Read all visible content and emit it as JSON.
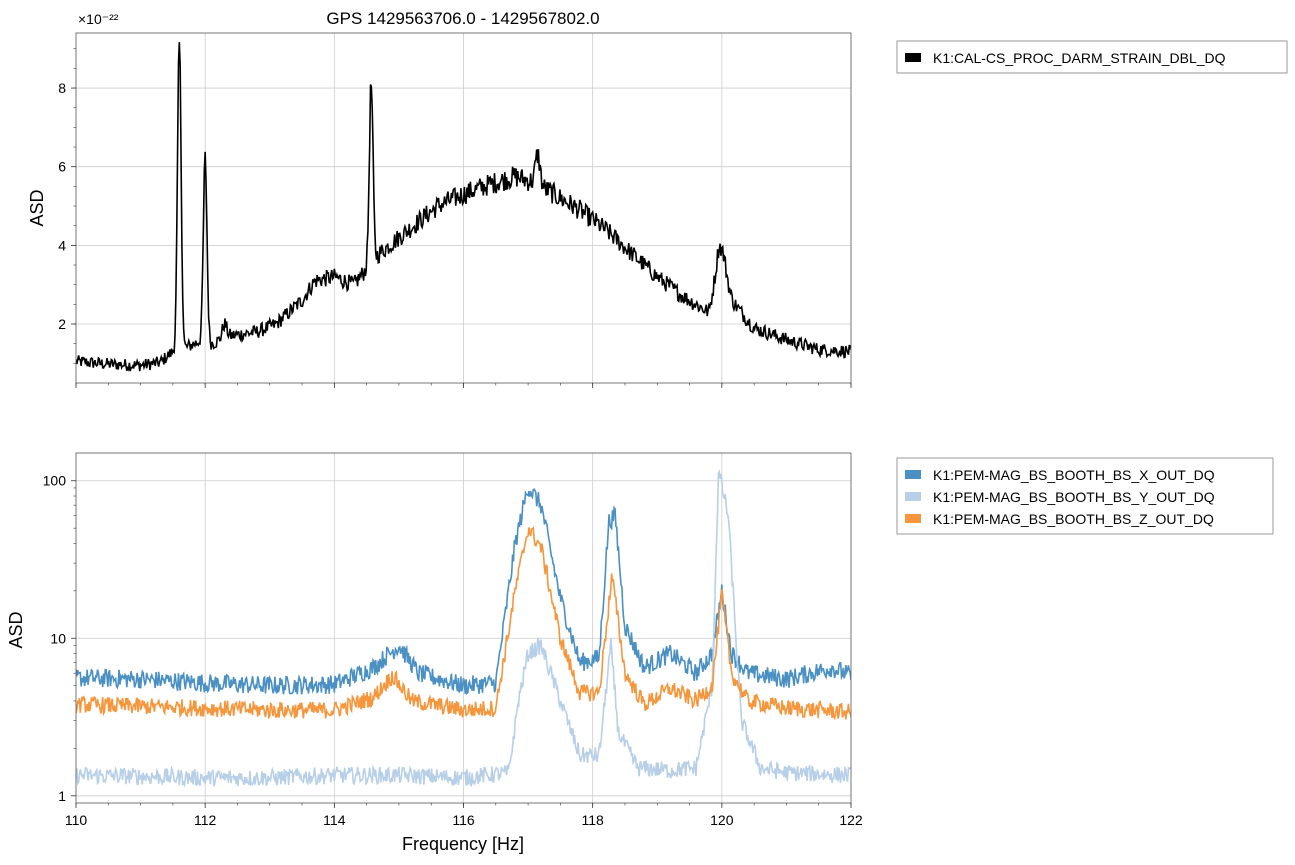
{
  "figure": {
    "title": "GPS 1429563706.0 - 1429567802.0"
  },
  "chart_data": [
    {
      "type": "line",
      "title": "GPS 1429563706.0 - 1429567802.0",
      "xlabel": "",
      "ylabel": "ASD",
      "xlim": [
        110,
        122
      ],
      "ylim": [
        0.5,
        9.4
      ],
      "y_offset_label": "×10⁻²²",
      "y_scale": "linear",
      "grid": true,
      "legend_position": "outside-right",
      "xticks": [
        110,
        112,
        114,
        116,
        118,
        120,
        122
      ],
      "yticks": [
        2,
        4,
        6,
        8
      ],
      "ytick_labels": [
        "2",
        "4",
        "6",
        "8"
      ],
      "series": [
        {
          "name": "K1:CAL-CS_PROC_DARM_STRAIN_DBL_DQ",
          "color": "#000000",
          "baseline": [
            [
              110,
              1.05
            ],
            [
              110.5,
              0.98
            ],
            [
              111,
              0.95
            ],
            [
              111.3,
              1.02
            ],
            [
              111.5,
              1.3
            ],
            [
              111.7,
              1.4
            ],
            [
              111.9,
              1.55
            ],
            [
              112.1,
              1.5
            ],
            [
              112.4,
              1.7
            ],
            [
              112.8,
              1.8
            ],
            [
              113.1,
              2.0
            ],
            [
              113.5,
              2.6
            ],
            [
              113.7,
              3.1
            ],
            [
              114.0,
              3.2
            ],
            [
              114.3,
              3.0
            ],
            [
              114.55,
              3.5
            ],
            [
              114.7,
              3.8
            ],
            [
              115.0,
              4.2
            ],
            [
              115.3,
              4.6
            ],
            [
              115.6,
              5.0
            ],
            [
              116.0,
              5.3
            ],
            [
              116.4,
              5.55
            ],
            [
              116.8,
              5.75
            ],
            [
              117.1,
              5.6
            ],
            [
              117.4,
              5.3
            ],
            [
              117.8,
              4.9
            ],
            [
              118.2,
              4.4
            ],
            [
              118.6,
              3.8
            ],
            [
              119.0,
              3.2
            ],
            [
              119.4,
              2.7
            ],
            [
              119.8,
              2.3
            ],
            [
              119.95,
              3.4
            ],
            [
              120.15,
              2.6
            ],
            [
              120.5,
              1.9
            ],
            [
              121.0,
              1.6
            ],
            [
              121.5,
              1.35
            ],
            [
              122.0,
              1.3
            ]
          ],
          "peaks": [
            {
              "x": 111.6,
              "y": 9.1,
              "width": 0.04
            },
            {
              "x": 112.0,
              "y": 6.2,
              "width": 0.04
            },
            {
              "x": 112.3,
              "y": 2.0,
              "width": 0.05
            },
            {
              "x": 114.57,
              "y": 8.1,
              "width": 0.04
            },
            {
              "x": 117.15,
              "y": 6.3,
              "width": 0.05
            },
            {
              "x": 120.0,
              "y": 3.9,
              "width": 0.1
            }
          ],
          "noise": 0.22
        }
      ]
    },
    {
      "type": "line",
      "title": "",
      "xlabel": "Frequency [Hz]",
      "ylabel": "ASD",
      "xlim": [
        110,
        122
      ],
      "ylim": [
        0.9,
        150
      ],
      "y_scale": "log",
      "grid": true,
      "legend_position": "outside-right",
      "xticks": [
        110,
        112,
        114,
        116,
        118,
        120,
        122
      ],
      "xtick_labels": [
        "110",
        "112",
        "114",
        "116",
        "118",
        "120",
        "122"
      ],
      "yticks": [
        1,
        10,
        100
      ],
      "ytick_labels": [
        "1",
        "10",
        "100"
      ],
      "series": [
        {
          "name": "K1:PEM-MAG_BS_BOOTH_BS_X_OUT_DQ",
          "color": "#4a90c2",
          "baseline": [
            [
              110,
              5.6
            ],
            [
              111,
              5.5
            ],
            [
              112,
              5.2
            ],
            [
              113,
              5.0
            ],
            [
              114,
              5.1
            ],
            [
              114.6,
              6.5
            ],
            [
              115,
              9.0
            ],
            [
              115.3,
              6.0
            ],
            [
              116,
              5.0
            ],
            [
              116.5,
              5.2
            ],
            [
              116.8,
              40
            ],
            [
              117.0,
              92
            ],
            [
              117.2,
              70
            ],
            [
              117.5,
              18
            ],
            [
              117.8,
              7.0
            ],
            [
              118.1,
              7.5
            ],
            [
              118.25,
              55
            ],
            [
              118.35,
              60
            ],
            [
              118.5,
              12
            ],
            [
              118.8,
              6.5
            ],
            [
              119.2,
              8.0
            ],
            [
              119.6,
              6.0
            ],
            [
              119.85,
              8.0
            ],
            [
              120.0,
              20
            ],
            [
              120.15,
              8.0
            ],
            [
              120.4,
              6.0
            ],
            [
              121,
              5.5
            ],
            [
              121.7,
              6.5
            ],
            [
              122,
              5.8
            ]
          ],
          "peaks": [],
          "noise": 0.1
        },
        {
          "name": "K1:PEM-MAG_BS_BOOTH_BS_Y_OUT_DQ",
          "color": "#b8cfe8",
          "baseline": [
            [
              110,
              1.35
            ],
            [
              111,
              1.33
            ],
            [
              112,
              1.3
            ],
            [
              113,
              1.3
            ],
            [
              114,
              1.35
            ],
            [
              115,
              1.35
            ],
            [
              116,
              1.3
            ],
            [
              116.7,
              1.4
            ],
            [
              116.85,
              4.0
            ],
            [
              117.0,
              8.0
            ],
            [
              117.2,
              9.0
            ],
            [
              117.5,
              4.0
            ],
            [
              117.8,
              1.8
            ],
            [
              118.1,
              1.8
            ],
            [
              118.28,
              9.0
            ],
            [
              118.4,
              2.5
            ],
            [
              118.7,
              1.5
            ],
            [
              119.2,
              1.45
            ],
            [
              119.6,
              1.5
            ],
            [
              119.85,
              5.0
            ],
            [
              119.95,
              115
            ],
            [
              120.1,
              60
            ],
            [
              120.3,
              3.0
            ],
            [
              120.6,
              1.5
            ],
            [
              121,
              1.4
            ],
            [
              122,
              1.35
            ]
          ],
          "peaks": [],
          "noise": 0.09
        },
        {
          "name": "K1:PEM-MAG_BS_BOOTH_BS_Z_OUT_DQ",
          "color": "#f5963c",
          "baseline": [
            [
              110,
              3.8
            ],
            [
              111,
              3.7
            ],
            [
              112,
              3.6
            ],
            [
              113,
              3.5
            ],
            [
              114,
              3.5
            ],
            [
              114.6,
              4.2
            ],
            [
              114.9,
              5.8
            ],
            [
              115.2,
              4.0
            ],
            [
              116,
              3.5
            ],
            [
              116.5,
              3.6
            ],
            [
              116.8,
              20
            ],
            [
              117.0,
              50
            ],
            [
              117.2,
              38
            ],
            [
              117.5,
              10
            ],
            [
              117.8,
              4.5
            ],
            [
              118.1,
              4.5
            ],
            [
              118.3,
              25
            ],
            [
              118.5,
              6.0
            ],
            [
              118.8,
              3.8
            ],
            [
              119.2,
              4.8
            ],
            [
              119.6,
              4.0
            ],
            [
              119.85,
              5.0
            ],
            [
              120.0,
              19
            ],
            [
              120.15,
              6.0
            ],
            [
              120.4,
              4.0
            ],
            [
              121,
              3.6
            ],
            [
              122,
              3.4
            ]
          ],
          "peaks": [],
          "noise": 0.09
        }
      ]
    }
  ]
}
